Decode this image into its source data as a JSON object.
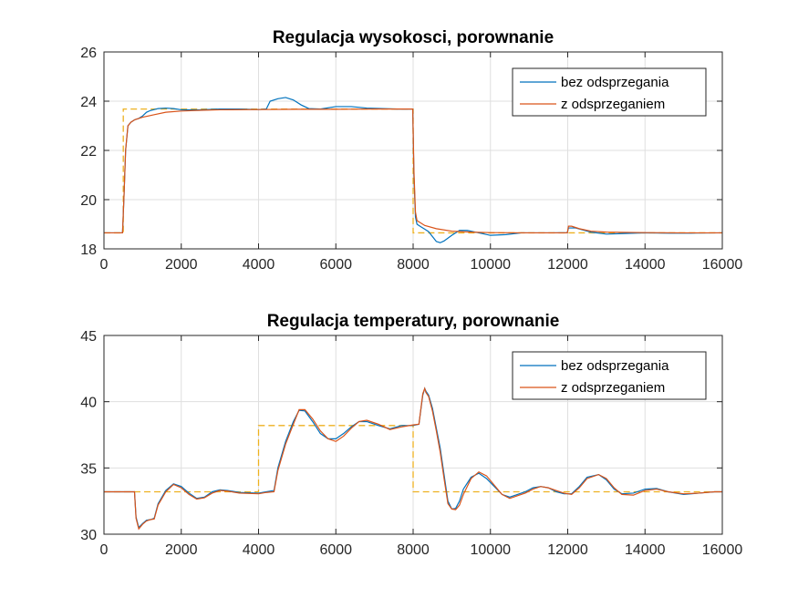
{
  "colors": {
    "series1": "#0072BD",
    "series2": "#D95319",
    "setpoint": "#EDB120",
    "grid": "#DFDFDF",
    "axes": "#262626"
  },
  "chart_data": [
    {
      "type": "line",
      "title": "Regulacja wysokosci, porownanie",
      "xlabel": "",
      "ylabel": "",
      "xlim": [
        0,
        16000
      ],
      "ylim": [
        18,
        26
      ],
      "xticks": [
        0,
        2000,
        4000,
        6000,
        8000,
        10000,
        12000,
        14000,
        16000
      ],
      "yticks": [
        18,
        20,
        22,
        24,
        26
      ],
      "grid": true,
      "legend_position": "top-right",
      "series": [
        {
          "name": "bez odsprzegania",
          "x": [
            0,
            480,
            520,
            560,
            620,
            700,
            800,
            900,
            1000,
            1100,
            1200,
            1400,
            1600,
            1800,
            2000,
            2500,
            3000,
            3500,
            4000,
            4200,
            4300,
            4500,
            4700,
            4900,
            5100,
            5300,
            5600,
            6000,
            6400,
            6800,
            7200,
            7600,
            7990,
            8020,
            8060,
            8100,
            8200,
            8300,
            8400,
            8500,
            8600,
            8700,
            8800,
            9000,
            9200,
            9400,
            9700,
            10000,
            10400,
            10800,
            11200,
            11600,
            11990,
            12020,
            12200,
            12600,
            13000,
            13400,
            14000,
            14600,
            15200,
            16000
          ],
          "y": [
            18.65,
            18.65,
            20.2,
            22.0,
            23.0,
            23.15,
            23.25,
            23.3,
            23.4,
            23.55,
            23.62,
            23.7,
            23.72,
            23.7,
            23.65,
            23.65,
            23.68,
            23.68,
            23.66,
            23.68,
            24.0,
            24.1,
            24.15,
            24.05,
            23.85,
            23.7,
            23.68,
            23.78,
            23.78,
            23.72,
            23.7,
            23.68,
            23.68,
            21.0,
            19.3,
            19.0,
            18.9,
            18.8,
            18.7,
            18.5,
            18.3,
            18.25,
            18.32,
            18.55,
            18.75,
            18.75,
            18.65,
            18.55,
            18.58,
            18.65,
            18.65,
            18.65,
            18.66,
            18.85,
            18.85,
            18.68,
            18.6,
            18.62,
            18.65,
            18.64,
            18.64,
            18.65
          ]
        },
        {
          "name": "z odsprzeganiem",
          "x": [
            0,
            480,
            520,
            560,
            620,
            700,
            800,
            1000,
            1300,
            1600,
            2000,
            2500,
            3000,
            4000,
            5000,
            6000,
            7000,
            7990,
            8020,
            8060,
            8100,
            8300,
            8600,
            9000,
            9500,
            10000,
            11000,
            11990,
            12020,
            12100,
            12300,
            12600,
            13000,
            14000,
            15000,
            16000
          ],
          "y": [
            18.65,
            18.65,
            20.2,
            22.0,
            23.0,
            23.15,
            23.25,
            23.35,
            23.45,
            23.55,
            23.6,
            23.63,
            23.65,
            23.66,
            23.67,
            23.67,
            23.68,
            23.68,
            21.2,
            19.5,
            19.15,
            18.95,
            18.82,
            18.72,
            18.68,
            18.66,
            18.65,
            18.65,
            18.92,
            18.92,
            18.82,
            18.72,
            18.68,
            18.66,
            18.65,
            18.65
          ]
        },
        {
          "name": "",
          "style": "dashed",
          "x": [
            0,
            500,
            500,
            8000,
            8000,
            16000
          ],
          "y": [
            18.65,
            18.65,
            23.68,
            23.68,
            18.65,
            18.65
          ]
        }
      ]
    },
    {
      "type": "line",
      "title": "Regulacja temperatury, porownanie",
      "xlabel": "",
      "ylabel": "",
      "xlim": [
        0,
        16000
      ],
      "ylim": [
        30,
        45
      ],
      "xticks": [
        0,
        2000,
        4000,
        6000,
        8000,
        10000,
        12000,
        14000,
        16000
      ],
      "yticks": [
        30,
        35,
        40,
        45
      ],
      "grid": true,
      "legend_position": "top-right",
      "series": [
        {
          "name": "bez odsprzegania",
          "x": [
            0,
            790,
            830,
            900,
            1000,
            1100,
            1200,
            1300,
            1400,
            1600,
            1800,
            2000,
            2200,
            2400,
            2600,
            2800,
            3000,
            3200,
            3500,
            4000,
            4200,
            4400,
            4500,
            4700,
            4900,
            5050,
            5200,
            5400,
            5600,
            5800,
            6000,
            6200,
            6400,
            6600,
            6800,
            7100,
            7400,
            7700,
            8000,
            8150,
            8250,
            8300,
            8330,
            8400,
            8500,
            8600,
            8700,
            8800,
            8900,
            9000,
            9100,
            9200,
            9300,
            9500,
            9700,
            9900,
            10100,
            10300,
            10500,
            10700,
            10900,
            11100,
            11300,
            11500,
            11700,
            11900,
            12100,
            12300,
            12500,
            12800,
            13000,
            13200,
            13400,
            13700,
            14000,
            14300,
            14600,
            15000,
            15400,
            15800,
            16000
          ],
          "y": [
            33.2,
            33.2,
            31.3,
            30.5,
            30.8,
            31.05,
            31.1,
            31.2,
            32.3,
            33.3,
            33.8,
            33.6,
            33.1,
            32.7,
            32.8,
            33.2,
            33.35,
            33.3,
            33.15,
            33.1,
            33.2,
            33.3,
            35.0,
            37.0,
            38.5,
            39.35,
            39.3,
            38.5,
            37.6,
            37.2,
            37.2,
            37.6,
            38.1,
            38.5,
            38.5,
            38.2,
            37.95,
            38.2,
            38.2,
            38.3,
            40.5,
            41.0,
            40.8,
            40.5,
            39.5,
            38.0,
            36.5,
            34.5,
            32.5,
            31.9,
            31.95,
            32.5,
            33.4,
            34.3,
            34.6,
            34.2,
            33.6,
            33.0,
            32.8,
            33.0,
            33.2,
            33.5,
            33.6,
            33.5,
            33.2,
            33.05,
            33.05,
            33.6,
            34.3,
            34.5,
            34.1,
            33.4,
            33.05,
            33.1,
            33.4,
            33.45,
            33.2,
            33.0,
            33.1,
            33.2,
            33.2
          ]
        },
        {
          "name": "z odsprzeganiem",
          "x": [
            0,
            790,
            830,
            900,
            1000,
            1100,
            1200,
            1300,
            1400,
            1600,
            1800,
            2000,
            2200,
            2400,
            2600,
            2800,
            3000,
            3200,
            3500,
            4000,
            4200,
            4400,
            4500,
            4700,
            4900,
            5050,
            5200,
            5400,
            5600,
            5800,
            6000,
            6200,
            6400,
            6600,
            6800,
            7100,
            7400,
            7700,
            8000,
            8150,
            8250,
            8300,
            8330,
            8400,
            8500,
            8600,
            8700,
            8800,
            8900,
            9000,
            9100,
            9200,
            9300,
            9500,
            9700,
            9900,
            10100,
            10300,
            10500,
            10700,
            10900,
            11100,
            11300,
            11500,
            11700,
            11900,
            12100,
            12300,
            12500,
            12800,
            13000,
            13200,
            13400,
            13700,
            14000,
            14300,
            14600,
            15000,
            15400,
            15800,
            16000
          ],
          "y": [
            33.2,
            33.2,
            31.2,
            30.4,
            30.75,
            31.0,
            31.1,
            31.15,
            32.2,
            33.2,
            33.75,
            33.5,
            33.0,
            32.65,
            32.75,
            33.1,
            33.3,
            33.25,
            33.1,
            33.05,
            33.15,
            33.2,
            34.8,
            36.8,
            38.3,
            39.4,
            39.4,
            38.7,
            37.8,
            37.2,
            37.0,
            37.4,
            38.0,
            38.5,
            38.6,
            38.3,
            37.9,
            38.1,
            38.25,
            38.3,
            40.6,
            41.0,
            40.7,
            40.4,
            39.3,
            37.8,
            36.2,
            34.2,
            32.3,
            31.9,
            31.85,
            32.2,
            33.0,
            34.2,
            34.7,
            34.4,
            33.7,
            33.0,
            32.7,
            32.9,
            33.1,
            33.4,
            33.6,
            33.5,
            33.3,
            33.1,
            33.0,
            33.5,
            34.2,
            34.5,
            34.2,
            33.5,
            33.0,
            32.95,
            33.3,
            33.4,
            33.2,
            33.05,
            33.1,
            33.2,
            33.2
          ]
        },
        {
          "name": "",
          "style": "dashed",
          "x": [
            0,
            4000,
            4000,
            8000,
            8000,
            16000
          ],
          "y": [
            33.2,
            33.2,
            38.2,
            38.2,
            33.2,
            33.2
          ]
        }
      ]
    }
  ]
}
